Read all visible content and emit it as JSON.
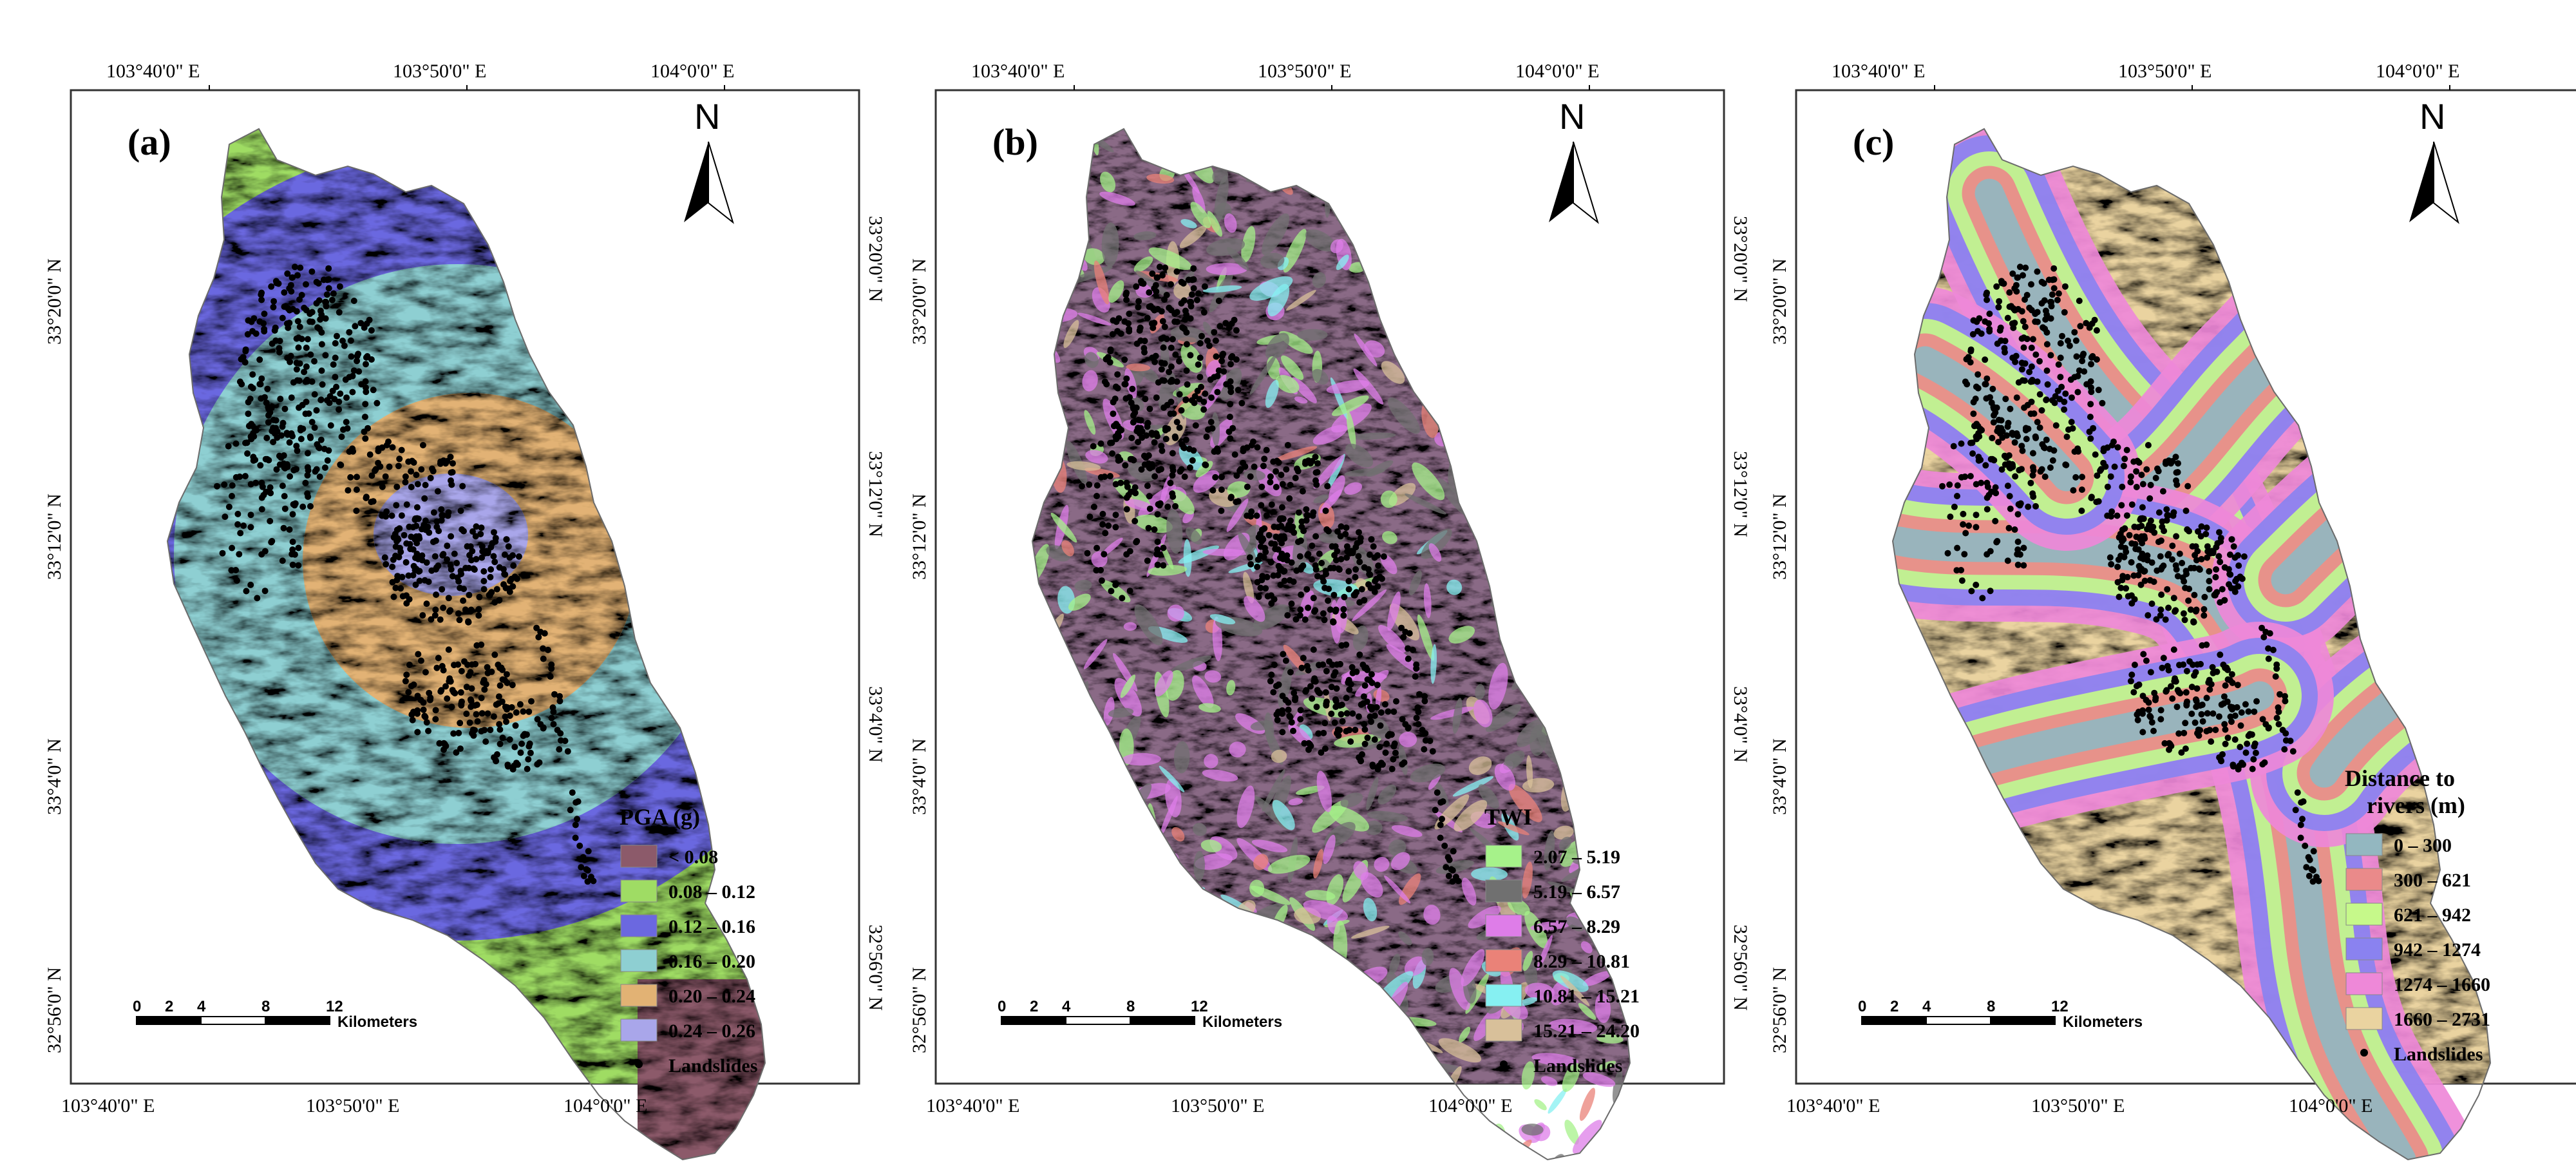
{
  "axes": {
    "top_ticks": [
      "103°40'0\" E",
      "103°50'0\" E",
      "104°0'0\" E"
    ],
    "bottom_ticks": [
      "103°40'0\" E",
      "103°50'0\" E",
      "104°0'0\" E"
    ],
    "left_ticks": [
      "33°20'0\" N",
      "33°12'0\" N",
      "33°4'0\" N",
      "32°56'0\" N"
    ],
    "right_ticks": [
      "33°20'0\" N",
      "33°12'0\" N",
      "33°4'0\" N",
      "32°56'0\" N"
    ]
  },
  "north_label": "N",
  "scale_bar": {
    "ticks": [
      "0",
      "2",
      "4",
      "8",
      "12"
    ],
    "unit": "Kilometers"
  },
  "panels": [
    {
      "label": "(a)",
      "legend_title": "PGA (g)",
      "classes": [
        {
          "label": "< 0.08",
          "color": "#8c5a6a"
        },
        {
          "label": "0.08 – 0.12",
          "color": "#9fdc64"
        },
        {
          "label": "0.12 – 0.16",
          "color": "#6b68e0"
        },
        {
          "label": "0.16 – 0.20",
          "color": "#8ecfd2"
        },
        {
          "label": "0.20 – 0.24",
          "color": "#e2b274"
        },
        {
          "label": "0.24 – 0.26",
          "color": "#a9a6ea"
        }
      ],
      "landslides_label": "Landslides"
    },
    {
      "label": "(b)",
      "legend_title": "TWI",
      "classes": [
        {
          "label": "2.07 – 5.19",
          "color": "#a6f28a"
        },
        {
          "label": "5.19 – 6.57",
          "color": "#707070"
        },
        {
          "label": "6.57 – 8.29",
          "color": "#de7de8"
        },
        {
          "label": "8.29 – 10.81",
          "color": "#ea8278"
        },
        {
          "label": "10.81 – 15.21",
          "color": "#86f0f2"
        },
        {
          "label": "15.21 – 24.20",
          "color": "#d8c09a"
        }
      ],
      "landslides_label": "Landslides"
    },
    {
      "label": "(c)",
      "legend_title": "Distance to\nrivers (m)",
      "classes": [
        {
          "label": "0 – 300",
          "color": "#93b7c0"
        },
        {
          "label": "300 – 621",
          "color": "#ea8a8a"
        },
        {
          "label": "621 – 942",
          "color": "#c6f98a"
        },
        {
          "label": "942 – 1274",
          "color": "#8a82f0"
        },
        {
          "label": "1274 – 1660",
          "color": "#ee88d8"
        },
        {
          "label": "1660 – 2731",
          "color": "#ead3a0"
        }
      ],
      "landslides_label": "Landslides"
    }
  ]
}
